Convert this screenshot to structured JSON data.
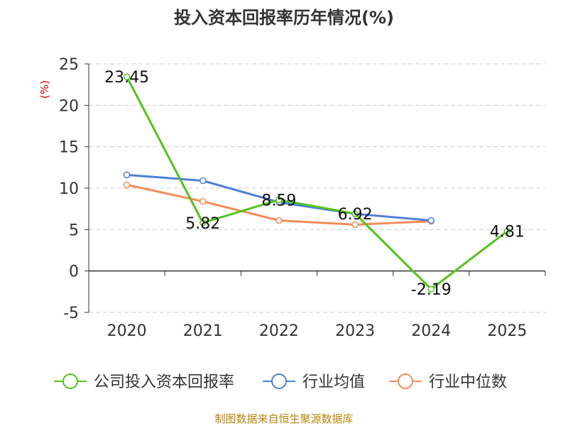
{
  "chart_data": {
    "type": "line",
    "title": "投入资本回报率历年情况(%)",
    "ylabel": "(%)",
    "xlabel": "",
    "categories": [
      "2020",
      "2021",
      "2022",
      "2023",
      "2024",
      "2025"
    ],
    "ylim": [
      -5,
      25
    ],
    "yticks": [
      -5,
      0,
      5,
      10,
      15,
      20,
      25
    ],
    "grid": true,
    "legend_position": "bottom",
    "series": [
      {
        "name": "公司投入资本回报率",
        "color": "#52c41a",
        "values": [
          23.45,
          5.82,
          8.59,
          6.92,
          -2.19,
          4.81
        ],
        "data_labels": [
          "23.45",
          "5.82",
          "8.59",
          "6.92",
          "-2.19",
          "4.81"
        ]
      },
      {
        "name": "行业均值",
        "color": "#4f7fd9",
        "values": [
          11.6,
          10.9,
          8.3,
          6.9,
          6.1,
          null
        ]
      },
      {
        "name": "行业中位数",
        "color": "#f28c5a",
        "values": [
          10.4,
          8.4,
          6.1,
          5.6,
          6.0,
          null
        ]
      }
    ],
    "source": "制图数据来自恒生聚源数据库"
  }
}
